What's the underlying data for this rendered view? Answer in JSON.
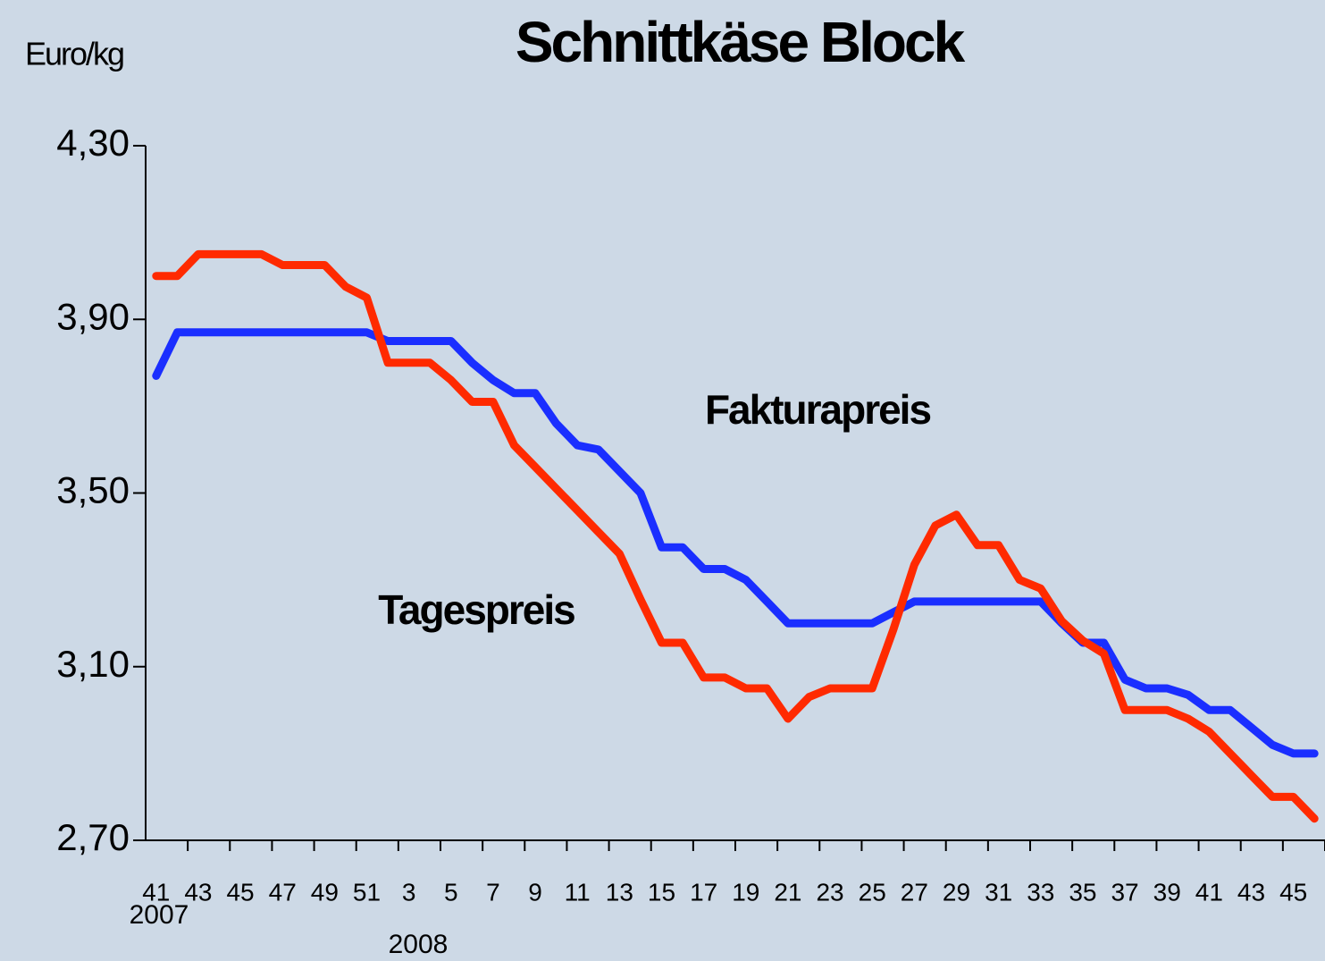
{
  "chart_data": {
    "type": "line",
    "title": "Schnittkäse Block",
    "y_label": "Euro/kg",
    "year_labels": [
      "2007",
      "2008"
    ],
    "categories": [
      "41",
      null,
      "43",
      null,
      "45",
      null,
      "47",
      null,
      "49",
      null,
      "51",
      null,
      "3",
      null,
      "5",
      null,
      "7",
      null,
      "9",
      null,
      "11",
      null,
      "13",
      null,
      "15",
      null,
      "17",
      null,
      "19",
      null,
      "21",
      null,
      "23",
      null,
      "25",
      null,
      "27",
      null,
      "29",
      null,
      "31",
      null,
      "33",
      null,
      "35",
      null,
      "37",
      null,
      "39",
      null,
      "41",
      null,
      "43",
      null,
      "45",
      null
    ],
    "series": [
      {
        "name": "Fakturapreis",
        "color": "#1a2eff",
        "values": [
          3.77,
          3.87,
          3.87,
          3.87,
          3.87,
          3.87,
          3.87,
          3.87,
          3.87,
          3.87,
          3.87,
          3.85,
          3.85,
          3.85,
          3.85,
          3.8,
          3.76,
          3.73,
          3.73,
          3.66,
          3.61,
          3.6,
          3.55,
          3.5,
          3.375,
          3.375,
          3.325,
          3.325,
          3.3,
          3.25,
          3.2,
          3.2,
          3.2,
          3.2,
          3.2,
          3.225,
          3.25,
          3.25,
          3.25,
          3.25,
          3.25,
          3.25,
          3.25,
          3.2,
          3.155,
          3.155,
          3.07,
          3.05,
          3.05,
          3.035,
          3.0,
          3.0,
          2.96,
          2.92,
          2.9,
          2.9
        ]
      },
      {
        "name": "Tagespreis",
        "color": "#ff2a00",
        "values": [
          4.0,
          4.0,
          4.05,
          4.05,
          4.05,
          4.05,
          4.025,
          4.025,
          4.025,
          3.975,
          3.95,
          3.8,
          3.8,
          3.8,
          3.76,
          3.71,
          3.71,
          3.61,
          3.56,
          3.51,
          3.46,
          3.41,
          3.36,
          3.255,
          3.155,
          3.155,
          3.075,
          3.075,
          3.05,
          3.05,
          2.98,
          3.03,
          3.05,
          3.05,
          3.05,
          3.185,
          3.335,
          3.425,
          3.45,
          3.38,
          3.38,
          3.3,
          3.28,
          3.205,
          3.16,
          3.13,
          3.0,
          3.0,
          3.0,
          2.98,
          2.95,
          2.9,
          2.85,
          2.8,
          2.8,
          2.75
        ]
      }
    ],
    "ylim": [
      2.7,
      4.3
    ],
    "yticks": [
      {
        "value": 2.7,
        "label": "2,70"
      },
      {
        "value": 3.1,
        "label": "3,10"
      },
      {
        "value": 3.5,
        "label": "3,50"
      },
      {
        "value": 3.9,
        "label": "3,90"
      },
      {
        "value": 4.3,
        "label": "4,30"
      }
    ]
  }
}
